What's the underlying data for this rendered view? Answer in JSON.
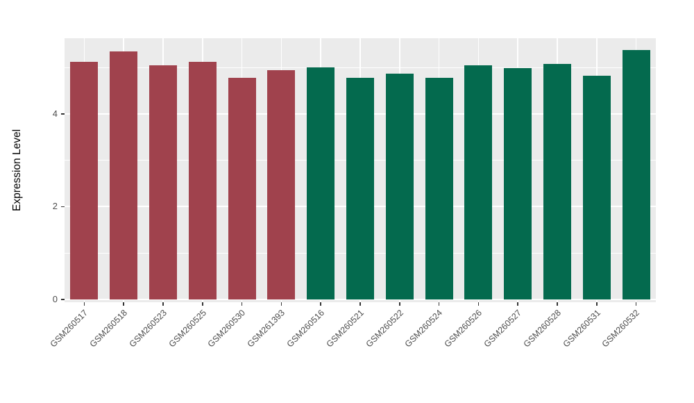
{
  "figure": {
    "background": "#FFFFFF"
  },
  "chart_data": {
    "type": "bar",
    "title": "",
    "xlabel": "",
    "ylabel": "Expression Level",
    "ylim": [
      0,
      5.6
    ],
    "yticks": [
      0,
      2,
      4
    ],
    "yticks_minor": [
      1,
      3,
      5
    ],
    "panel_background": "#EBEBEB",
    "gridline_color": "#FFFFFF",
    "axis_text_color": "#4D4D4D",
    "legend_position": "none",
    "grid": "on",
    "categories": [
      "GSM260517",
      "GSM260518",
      "GSM260523",
      "GSM260525",
      "GSM260530",
      "GSM261393",
      "GSM260516",
      "GSM260521",
      "GSM260522",
      "GSM260524",
      "GSM260526",
      "GSM260527",
      "GSM260528",
      "GSM260531",
      "GSM260532"
    ],
    "values": [
      5.12,
      5.34,
      5.04,
      5.12,
      4.78,
      4.94,
      5.0,
      4.78,
      4.86,
      4.78,
      5.04,
      4.98,
      5.08,
      4.82,
      5.38
    ],
    "bar_colors": [
      "#A0424D",
      "#A0424D",
      "#A0424D",
      "#A0424D",
      "#A0424D",
      "#A0424D",
      "#046A4E",
      "#046A4E",
      "#046A4E",
      "#046A4E",
      "#046A4E",
      "#046A4E",
      "#046A4E",
      "#046A4E",
      "#046A4E"
    ],
    "group_colors": {
      "left_group": "#A0424D",
      "right_group": "#046A4E"
    }
  }
}
